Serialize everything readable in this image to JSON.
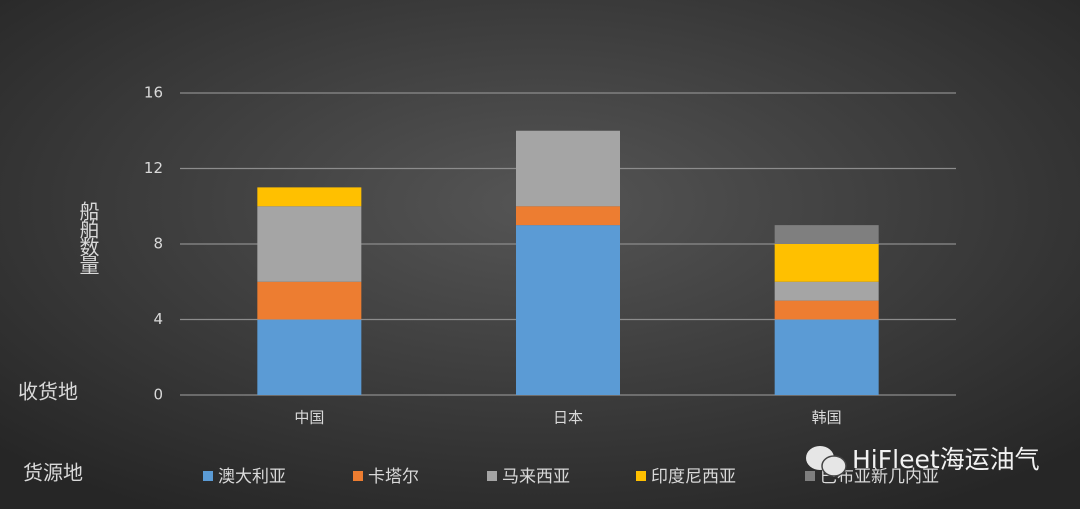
{
  "chart_data": {
    "type": "stacked_bar",
    "y_label": "船舶数量",
    "x_label": "收货地",
    "legend_title": "货源地",
    "watermark": "HiFleet海运油气",
    "categories": [
      "中国",
      "日本",
      "韩国"
    ],
    "series": [
      {
        "name": "澳大利亚",
        "color": "#5b9bd5",
        "values": [
          4,
          9,
          4
        ]
      },
      {
        "name": "卡塔尔",
        "color": "#ed7d31",
        "values": [
          2,
          1,
          1
        ]
      },
      {
        "name": "马来西亚",
        "color": "#a5a5a5",
        "values": [
          4,
          4,
          1
        ]
      },
      {
        "name": "印度尼西亚",
        "color": "#ffc000",
        "values": [
          1,
          0,
          2
        ]
      },
      {
        "name": "巴布亚新几内亚",
        "color": "#7f7f7f",
        "values": [
          0,
          0,
          1
        ]
      }
    ],
    "ylim": [
      0,
      16
    ],
    "yticks": [
      0,
      4,
      8,
      12,
      16
    ],
    "grid": true
  }
}
